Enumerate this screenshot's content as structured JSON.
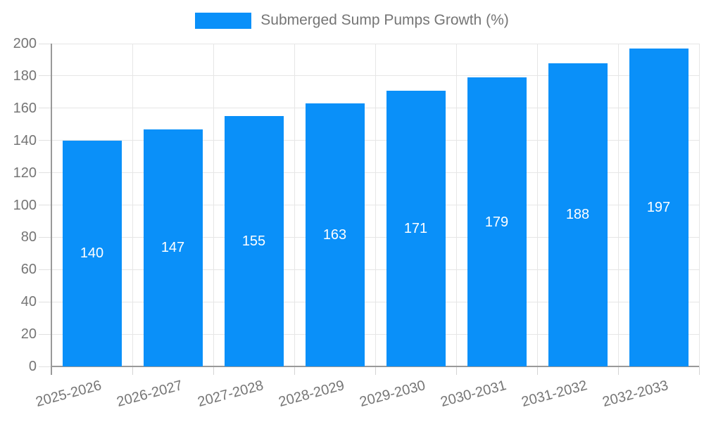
{
  "chart_data": {
    "type": "bar",
    "title": "",
    "legend_position": "top",
    "categories": [
      "2025-2026",
      "2026-2027",
      "2027-2028",
      "2028-2029",
      "2029-2030",
      "2030-2031",
      "2031-2032",
      "2032-2033"
    ],
    "series": [
      {
        "name": "Submerged Sump Pumps Growth (%)",
        "values": [
          140,
          147,
          155,
          163,
          171,
          179,
          188,
          197
        ]
      }
    ],
    "xlabel": "",
    "ylabel": "",
    "ylim": [
      0,
      200
    ],
    "ytick_step": 20,
    "grid": true,
    "bar_value_labels": "inside-center"
  },
  "colors": {
    "bar": "#0a90f9",
    "bar_label": "#ffffff",
    "axis_text": "#757575",
    "grid_line": "#e6e6e6",
    "axis_line": "#999999",
    "tick_line": "#d4d4d4",
    "background": "#ffffff"
  }
}
